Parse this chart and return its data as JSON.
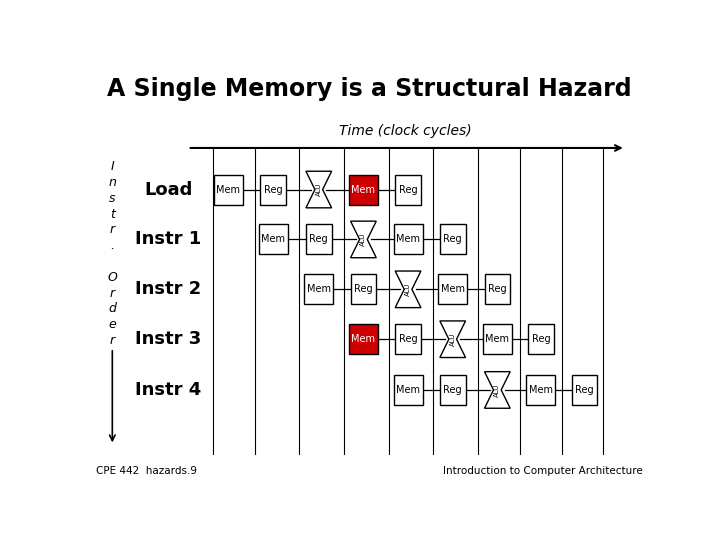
{
  "title": "A Single Memory is a Structural Hazard",
  "time_label": "Time (clock cycles)",
  "footer_left": "CPE 442  hazards.9",
  "footer_right": "Introduction to Computer Architecture",
  "bg_color": "#ffffff",
  "box_color": "#ffffff",
  "box_edge": "#000000",
  "red_color": "#cc0000",
  "text_color": "#000000",
  "pipeline_rows": [
    {
      "name": "Load",
      "stages": [
        {
          "type": "Mem",
          "col": 1,
          "red": false
        },
        {
          "type": "Reg",
          "col": 2,
          "red": false
        },
        {
          "type": "ALU",
          "col": 3,
          "red": false
        },
        {
          "type": "Mem",
          "col": 4,
          "red": true
        },
        {
          "type": "Reg",
          "col": 5,
          "red": false
        }
      ]
    },
    {
      "name": "Instr 1",
      "stages": [
        {
          "type": "Mem",
          "col": 2,
          "red": false
        },
        {
          "type": "Reg",
          "col": 3,
          "red": false
        },
        {
          "type": "ALU",
          "col": 4,
          "red": false
        },
        {
          "type": "Mem",
          "col": 5,
          "red": false
        },
        {
          "type": "Reg",
          "col": 6,
          "red": false
        }
      ]
    },
    {
      "name": "Instr 2",
      "stages": [
        {
          "type": "Mem",
          "col": 3,
          "red": false
        },
        {
          "type": "Reg",
          "col": 4,
          "red": false
        },
        {
          "type": "ALU",
          "col": 5,
          "red": false
        },
        {
          "type": "Mem",
          "col": 6,
          "red": false
        },
        {
          "type": "Reg",
          "col": 7,
          "red": false
        }
      ]
    },
    {
      "name": "Instr 3",
      "stages": [
        {
          "type": "Mem",
          "col": 4,
          "red": true
        },
        {
          "type": "Reg",
          "col": 5,
          "red": false
        },
        {
          "type": "ALU",
          "col": 6,
          "red": false
        },
        {
          "type": "Mem",
          "col": 7,
          "red": false
        },
        {
          "type": "Reg",
          "col": 8,
          "red": false
        }
      ]
    },
    {
      "name": "Instr 4",
      "stages": [
        {
          "type": "Mem",
          "col": 5,
          "red": false
        },
        {
          "type": "Reg",
          "col": 6,
          "red": false
        },
        {
          "type": "ALU",
          "col": 7,
          "red": false
        },
        {
          "type": "Mem",
          "col": 8,
          "red": false
        },
        {
          "type": "Reg",
          "col": 9,
          "red": false
        }
      ]
    }
  ]
}
